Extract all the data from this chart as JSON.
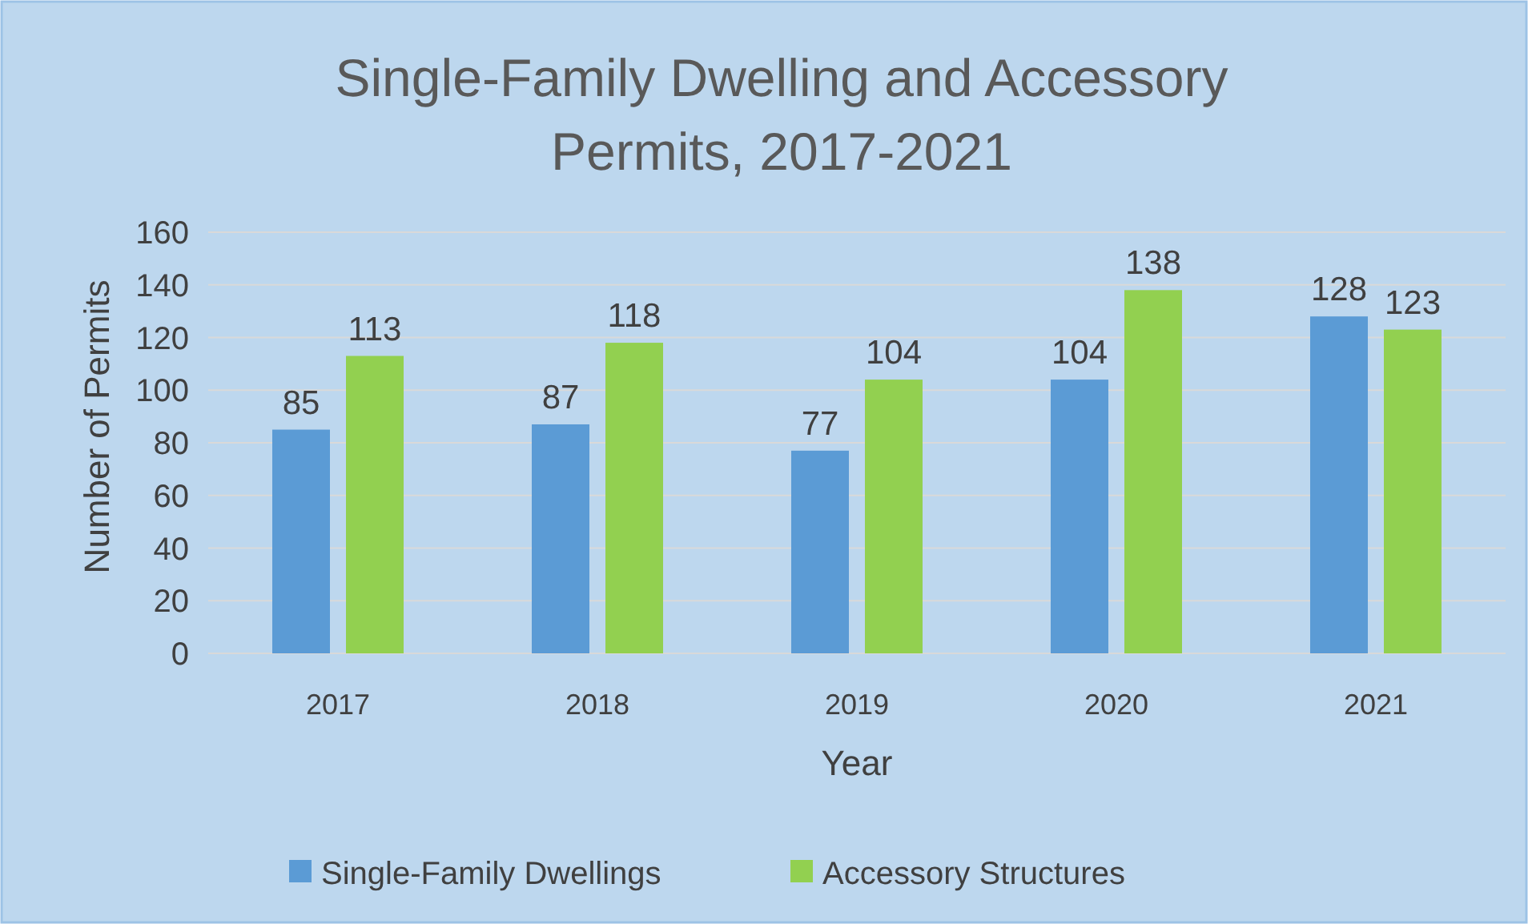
{
  "chart_data": {
    "type": "bar",
    "title": "Single-Family Dwelling and Accessory Permits, 2017-2021",
    "xlabel": "Year",
    "ylabel": "Number of Permits",
    "categories": [
      "2017",
      "2018",
      "2019",
      "2020",
      "2021"
    ],
    "series": [
      {
        "name": "Single-Family Dwellings",
        "color": "#5b9bd5",
        "values": [
          85,
          87,
          77,
          104,
          128
        ]
      },
      {
        "name": "Accessory Structures",
        "color": "#92d050",
        "values": [
          113,
          118,
          104,
          138,
          123
        ]
      }
    ],
    "ylim": [
      0,
      160
    ],
    "yticks": [
      0,
      20,
      40,
      60,
      80,
      100,
      120,
      140,
      160
    ],
    "grid": "y",
    "legend": "bottom",
    "data_labels": true
  }
}
